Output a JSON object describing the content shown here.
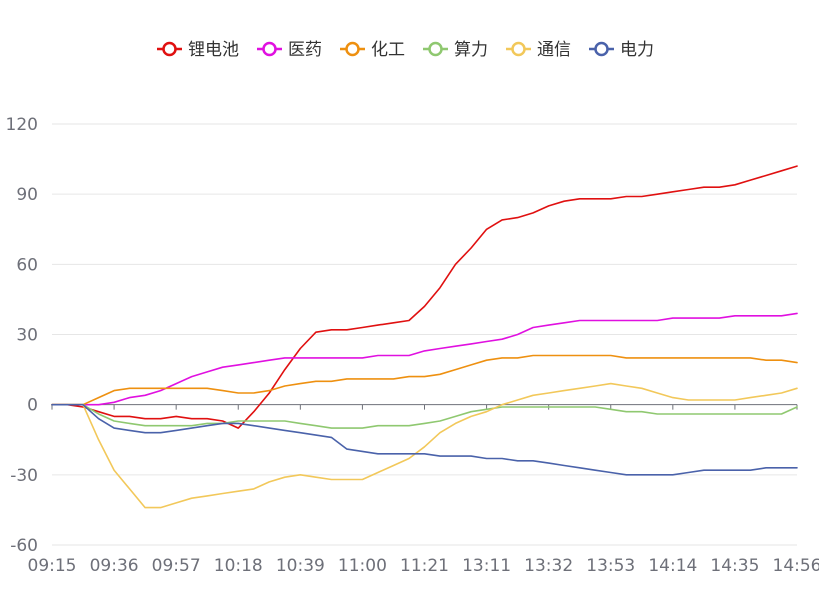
{
  "chart_data": {
    "type": "line",
    "title": "",
    "xlabel": "",
    "ylabel": "",
    "ylim": [
      -60,
      120
    ],
    "yticks": [
      -60,
      -30,
      0,
      30,
      60,
      90,
      120
    ],
    "x_tick_labels": [
      "09:15",
      "09:36",
      "09:57",
      "10:18",
      "10:39",
      "11:00",
      "11:21",
      "13:11",
      "13:32",
      "13:53",
      "14:14",
      "14:35",
      "14:56"
    ],
    "x_tick_index": [
      0,
      4,
      8,
      12,
      16,
      20,
      24,
      28,
      32,
      36,
      40,
      44,
      48
    ],
    "grid": true,
    "legend_position": "top-center",
    "series": [
      {
        "name": "锂电池",
        "color": "#e01010",
        "values": [
          0,
          0,
          -1,
          -3,
          -5,
          -5,
          -6,
          -6,
          -5,
          -6,
          -6,
          -7,
          -10,
          -3,
          5,
          15,
          24,
          31,
          32,
          32,
          33,
          34,
          35,
          36,
          42,
          50,
          60,
          67,
          75,
          79,
          80,
          82,
          85,
          87,
          88,
          88,
          88,
          89,
          89,
          90,
          91,
          92,
          93,
          93,
          94,
          96,
          98,
          100,
          102
        ]
      },
      {
        "name": "医药",
        "color": "#e010e0",
        "values": [
          0,
          0,
          0,
          0,
          1,
          3,
          4,
          6,
          9,
          12,
          14,
          16,
          17,
          18,
          19,
          20,
          20,
          20,
          20,
          20,
          20,
          21,
          21,
          21,
          23,
          24,
          25,
          26,
          27,
          28,
          30,
          33,
          34,
          35,
          36,
          36,
          36,
          36,
          36,
          36,
          37,
          37,
          37,
          37,
          38,
          38,
          38,
          38,
          39
        ]
      },
      {
        "name": "化工",
        "color": "#ee9010",
        "values": [
          0,
          0,
          0,
          3,
          6,
          7,
          7,
          7,
          7,
          7,
          7,
          6,
          5,
          5,
          6,
          8,
          9,
          10,
          10,
          11,
          11,
          11,
          11,
          12,
          12,
          13,
          15,
          17,
          19,
          20,
          20,
          21,
          21,
          21,
          21,
          21,
          21,
          20,
          20,
          20,
          20,
          20,
          20,
          20,
          20,
          20,
          19,
          19,
          18
        ]
      },
      {
        "name": "算力",
        "color": "#8fc870",
        "values": [
          0,
          0,
          0,
          -4,
          -7,
          -8,
          -9,
          -9,
          -9,
          -9,
          -8,
          -8,
          -7,
          -7,
          -7,
          -7,
          -8,
          -9,
          -10,
          -10,
          -10,
          -9,
          -9,
          -9,
          -8,
          -7,
          -5,
          -3,
          -2,
          -1,
          -1,
          -1,
          -1,
          -1,
          -1,
          -1,
          -2,
          -3,
          -3,
          -4,
          -4,
          -4,
          -4,
          -4,
          -4,
          -4,
          -4,
          -4,
          -1
        ]
      },
      {
        "name": "通信",
        "color": "#f2c85a",
        "values": [
          0,
          0,
          0,
          -15,
          -28,
          -36,
          -44,
          -44,
          -42,
          -40,
          -39,
          -38,
          -37,
          -36,
          -33,
          -31,
          -30,
          -31,
          -32,
          -32,
          -32,
          -29,
          -26,
          -23,
          -18,
          -12,
          -8,
          -5,
          -3,
          0,
          2,
          4,
          5,
          6,
          7,
          8,
          9,
          8,
          7,
          5,
          3,
          2,
          2,
          2,
          2,
          3,
          4,
          5,
          7
        ]
      },
      {
        "name": "电力",
        "color": "#4a62aa",
        "values": [
          0,
          0,
          0,
          -6,
          -10,
          -11,
          -12,
          -12,
          -11,
          -10,
          -9,
          -8,
          -8,
          -9,
          -10,
          -11,
          -12,
          -13,
          -14,
          -19,
          -20,
          -21,
          -21,
          -21,
          -21,
          -22,
          -22,
          -22,
          -23,
          -23,
          -24,
          -24,
          -25,
          -26,
          -27,
          -28,
          -29,
          -30,
          -30,
          -30,
          -30,
          -29,
          -28,
          -28,
          -28,
          -28,
          -27,
          -27,
          -27
        ]
      }
    ]
  }
}
